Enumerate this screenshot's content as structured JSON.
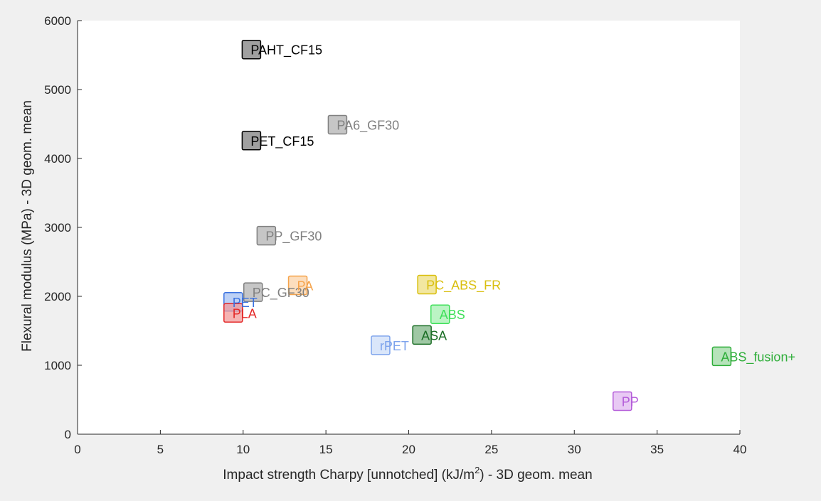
{
  "chart_data": {
    "type": "scatter",
    "title": "",
    "xlabel_prefix": "Impact strength Charpy [unnotched] (kJ/m",
    "xlabel_sup": "2",
    "xlabel_suffix": ") - 3D geom. mean",
    "ylabel": "Flexural modulus (MPa) - 3D geom. mean",
    "xlim": [
      0,
      40
    ],
    "ylim": [
      0,
      6000
    ],
    "xticks": [
      0,
      5,
      10,
      15,
      20,
      25,
      30,
      35,
      40
    ],
    "yticks": [
      0,
      1000,
      2000,
      3000,
      4000,
      5000,
      6000
    ],
    "grid": false,
    "legend": "none",
    "marker": "square",
    "points": [
      {
        "label": "PAHT_CF15",
        "x": 10.5,
        "y": 5580,
        "color": "#000000",
        "fill": "#808080"
      },
      {
        "label": "PET_CF15",
        "x": 10.5,
        "y": 4260,
        "color": "#000000",
        "fill": "#808080"
      },
      {
        "label": "PA6_GF30",
        "x": 15.7,
        "y": 4490,
        "color": "#808080",
        "fill": "#b3b3b3"
      },
      {
        "label": "PP_GF30",
        "x": 11.4,
        "y": 2880,
        "color": "#808080",
        "fill": "#b3b3b3"
      },
      {
        "label": "PC_GF30",
        "x": 10.6,
        "y": 2060,
        "color": "#808080",
        "fill": "#b3b3b3"
      },
      {
        "label": "PA",
        "x": 13.3,
        "y": 2160,
        "color": "#f5a34b",
        "fill": "#fbd3a8"
      },
      {
        "label": "PET",
        "x": 9.4,
        "y": 1920,
        "color": "#3b72e0",
        "fill": "#a6c0f2"
      },
      {
        "label": "PLA",
        "x": 9.4,
        "y": 1760,
        "color": "#e42828",
        "fill": "#f29a9a"
      },
      {
        "label": "PC_ABS_FR",
        "x": 21.1,
        "y": 2170,
        "color": "#d9bf0f",
        "fill": "#eedf80"
      },
      {
        "label": "ABS",
        "x": 21.9,
        "y": 1740,
        "color": "#3fe05a",
        "fill": "#a4f0b0"
      },
      {
        "label": "ASA",
        "x": 20.8,
        "y": 1440,
        "color": "#1b6e25",
        "fill": "#7fb585"
      },
      {
        "label": "rPET",
        "x": 18.3,
        "y": 1290,
        "color": "#7da3ec",
        "fill": "#cdddf8"
      },
      {
        "label": "ABS_fusion+",
        "x": 38.9,
        "y": 1130,
        "color": "#2fae3a",
        "fill": "#9ed9a3"
      },
      {
        "label": "PP",
        "x": 32.9,
        "y": 480,
        "color": "#b45cd9",
        "fill": "#e0b7f0"
      }
    ]
  }
}
